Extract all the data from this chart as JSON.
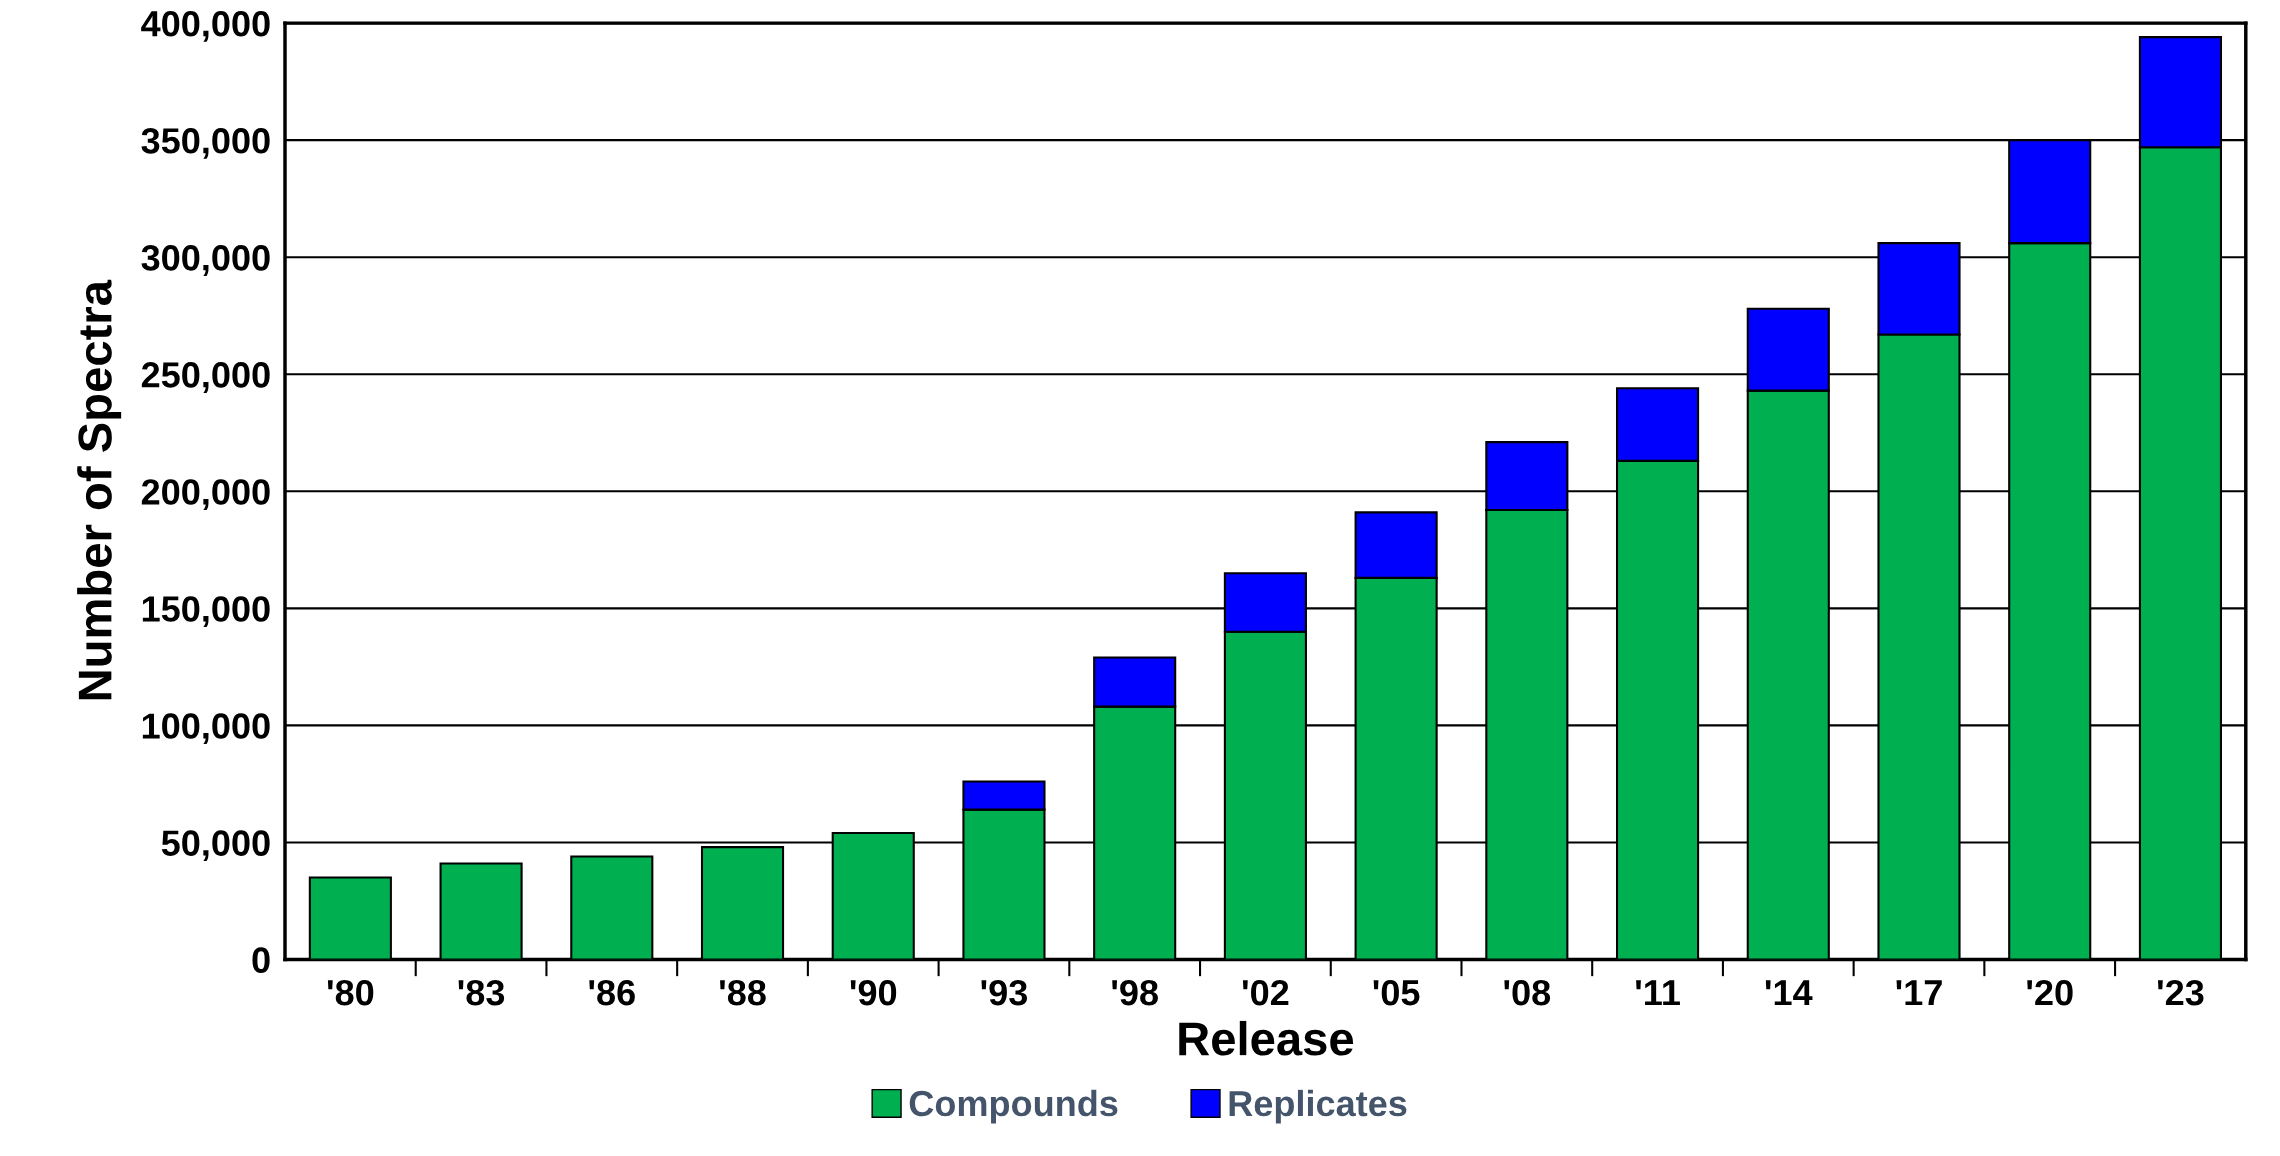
{
  "chart_data": {
    "type": "bar",
    "stacked": true,
    "xlabel": "Release",
    "ylabel": "Number of Spectra",
    "categories": [
      "'80",
      "'83",
      "'86",
      "'88",
      "'90",
      "'93",
      "'98",
      "'02",
      "'05",
      "'08",
      "'11",
      "'14",
      "'17",
      "'20",
      "'23"
    ],
    "series": [
      {
        "name": "Compounds",
        "color": "#00b050",
        "values": [
          35000,
          41000,
          44000,
          48000,
          54000,
          64000,
          108000,
          140000,
          163000,
          192000,
          213000,
          243000,
          267000,
          306000,
          347000
        ]
      },
      {
        "name": "Replicates",
        "color": "#0000ff",
        "values": [
          null,
          null,
          null,
          null,
          null,
          12000,
          21000,
          25000,
          28000,
          29000,
          31000,
          35000,
          39000,
          44000,
          47000
        ]
      }
    ],
    "ylim": [
      0,
      400000
    ],
    "yticks": [
      0,
      {
        "value": 50000,
        "label": "50,000"
      },
      {
        "value": 100000,
        "label": "100,000"
      },
      {
        "value": 150000,
        "label": "150,000"
      },
      {
        "value": 200000,
        "label": "200,000"
      },
      {
        "value": 250000,
        "label": "250,000"
      },
      {
        "value": 300000,
        "label": "300,000"
      },
      {
        "value": 350000,
        "label": "350,000"
      },
      {
        "value": 400000,
        "label": "400,000"
      }
    ],
    "grid": "y",
    "legend": "bottom"
  }
}
